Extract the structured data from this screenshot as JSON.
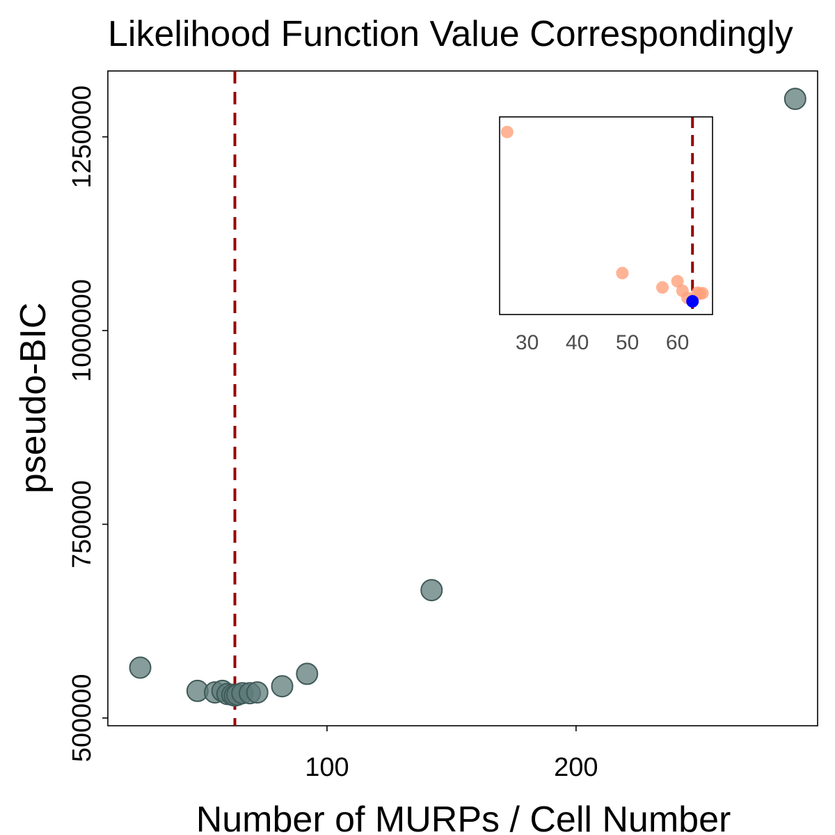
{
  "colors": {
    "main_point_fill": "#5f7c7a",
    "main_point_stroke": "#3f5a58",
    "inset_point_fill": "#ffa07a",
    "selected_point_fill": "#0000ff",
    "reference_line": "#990000",
    "frame": "#000000",
    "inset_tick_text": "#4d4d4d"
  },
  "chart_data": [
    {
      "type": "scatter",
      "title": "Likelihood Function Value Correspondingly",
      "xlabel": "Number of MURPs / Cell Number",
      "ylabel": "pseudo-BIC",
      "xlim": [
        12,
        297
      ],
      "ylim": [
        490000,
        1335000
      ],
      "x_ticks": [
        100,
        200
      ],
      "x_tick_labels": [
        "100",
        "200"
      ],
      "y_ticks": [
        500000,
        750000,
        1000000,
        1250000
      ],
      "y_tick_labels": [
        "500000",
        "750000",
        "1000000",
        "1250000"
      ],
      "grid": false,
      "legend": "none",
      "reference_line": {
        "orientation": "vertical",
        "x": 63,
        "style": "dashed"
      },
      "points": [
        {
          "x": 25,
          "y": 565000
        },
        {
          "x": 48,
          "y": 535000
        },
        {
          "x": 55,
          "y": 533000
        },
        {
          "x": 58,
          "y": 535000
        },
        {
          "x": 60,
          "y": 531000
        },
        {
          "x": 62,
          "y": 530000
        },
        {
          "x": 63,
          "y": 529000
        },
        {
          "x": 64,
          "y": 530000
        },
        {
          "x": 66,
          "y": 532000
        },
        {
          "x": 69,
          "y": 532000
        },
        {
          "x": 72,
          "y": 533000
        },
        {
          "x": 82,
          "y": 541000
        },
        {
          "x": 92,
          "y": 557000
        },
        {
          "x": 142,
          "y": 665000
        },
        {
          "x": 288,
          "y": 1299000
        }
      ]
    },
    {
      "type": "scatter",
      "title": "",
      "xlabel": "",
      "ylabel": "",
      "location": "top-right inset",
      "xlim": [
        24.5,
        67
      ],
      "ylim": [
        528000,
        567000
      ],
      "x_ticks": [
        30,
        40,
        50,
        60
      ],
      "x_tick_labels": [
        "30",
        "40",
        "50",
        "60"
      ],
      "y_tick_labels": [],
      "grid": false,
      "reference_line": {
        "orientation": "vertical",
        "x": 63,
        "style": "dashed"
      },
      "points": [
        {
          "x": 26,
          "y": 565000
        },
        {
          "x": 49,
          "y": 535500
        },
        {
          "x": 57,
          "y": 532500
        },
        {
          "x": 60,
          "y": 533800
        },
        {
          "x": 61,
          "y": 531800
        },
        {
          "x": 62,
          "y": 530300
        },
        {
          "x": 64,
          "y": 531400
        },
        {
          "x": 64.5,
          "y": 531200
        },
        {
          "x": 65,
          "y": 531300
        }
      ],
      "highlight_point": {
        "x": 63,
        "y": 529600
      }
    }
  ]
}
